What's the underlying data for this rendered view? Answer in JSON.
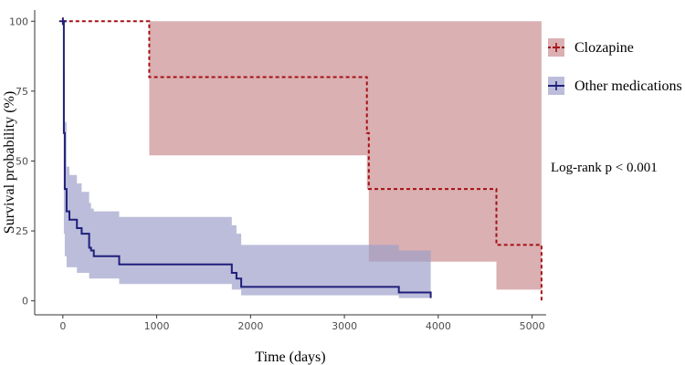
{
  "chart_data": {
    "type": "line",
    "subtype": "kaplan-meier survival curve with confidence bands",
    "xlabel": "Time (days)",
    "ylabel": "Survival probability (%)",
    "xlim": [
      -300,
      5150
    ],
    "ylim": [
      -5,
      104
    ],
    "x_ticks": [
      0,
      1000,
      2000,
      3000,
      4000,
      5000
    ],
    "y_ticks": [
      0,
      25,
      50,
      75,
      100
    ],
    "grid": false,
    "legend_position": "right",
    "annotation": "Log-rank p < 0.001",
    "series": [
      {
        "name": "Clozapine",
        "color": "#a50f15",
        "band_color": "#c98a8d",
        "line_style": "dashed",
        "steps": [
          [
            0,
            100
          ],
          [
            920,
            80
          ],
          [
            3240,
            60
          ],
          [
            3260,
            40
          ],
          [
            4620,
            20
          ],
          [
            5100,
            0
          ]
        ],
        "ci": [
          [
            0,
            100,
            100
          ],
          [
            920,
            52,
            100
          ],
          [
            3240,
            40,
            100
          ],
          [
            3260,
            14,
            100
          ],
          [
            4620,
            4,
            100
          ],
          [
            5100,
            4,
            100
          ]
        ],
        "censor_x": [
          0
        ]
      },
      {
        "name": "Other medications",
        "color": "#1f1f7a",
        "band_color": "#9c9ec8",
        "line_style": "solid",
        "steps": [
          [
            0,
            100
          ],
          [
            10,
            60
          ],
          [
            20,
            40
          ],
          [
            40,
            32
          ],
          [
            70,
            29
          ],
          [
            150,
            26
          ],
          [
            200,
            24
          ],
          [
            280,
            19
          ],
          [
            300,
            18
          ],
          [
            330,
            16
          ],
          [
            600,
            13
          ],
          [
            1800,
            10
          ],
          [
            1850,
            8
          ],
          [
            1900,
            5
          ],
          [
            3580,
            3
          ],
          [
            3920,
            1
          ]
        ],
        "ci": [
          [
            0,
            100,
            100
          ],
          [
            10,
            24,
            83
          ],
          [
            20,
            16,
            64
          ],
          [
            40,
            12,
            48
          ],
          [
            70,
            12,
            45
          ],
          [
            150,
            10,
            42
          ],
          [
            200,
            10,
            39
          ],
          [
            280,
            8,
            35
          ],
          [
            300,
            8,
            33
          ],
          [
            330,
            8,
            32
          ],
          [
            600,
            6,
            30
          ],
          [
            1800,
            4,
            27
          ],
          [
            1850,
            4,
            24
          ],
          [
            1900,
            2,
            20
          ],
          [
            3580,
            1,
            18
          ],
          [
            3920,
            1,
            18
          ]
        ],
        "censor_x": [
          0
        ]
      }
    ]
  }
}
